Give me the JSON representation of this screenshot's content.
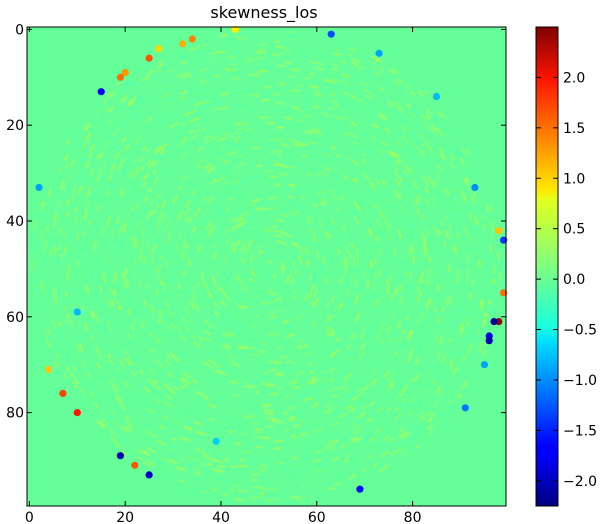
{
  "chart_data": {
    "type": "heatmap",
    "title": "skewness_los",
    "xlabel": "",
    "ylabel": "",
    "x_range": [
      0,
      99
    ],
    "y_range": [
      0,
      99
    ],
    "y_inverted": true,
    "x_ticks": [
      "0",
      "20",
      "40",
      "60",
      "80"
    ],
    "x_tick_values": [
      0,
      20,
      40,
      60,
      80
    ],
    "y_ticks": [
      "0",
      "20",
      "40",
      "60",
      "80"
    ],
    "y_tick_values": [
      0,
      20,
      40,
      60,
      80
    ],
    "colormap": "jet",
    "colorbar": {
      "range": [
        -2.25,
        2.5
      ],
      "ticks": [
        "−2.0",
        "−1.5",
        "−1.0",
        "−0.5",
        "0.0",
        "0.5",
        "1.0",
        "1.5",
        "2.0"
      ],
      "tick_values": [
        -2.0,
        -1.5,
        -1.0,
        -0.5,
        0.0,
        0.5,
        1.0,
        1.5,
        2.0
      ]
    },
    "background_value": 0.0,
    "disk": {
      "center": [
        49.5,
        49.5
      ],
      "radius": 49.5
    },
    "highlights": [
      {
        "x": 15,
        "y": 13,
        "value": -1.7
      },
      {
        "x": 19,
        "y": 10,
        "value": 1.4
      },
      {
        "x": 20,
        "y": 9,
        "value": 1.2
      },
      {
        "x": 25,
        "y": 6,
        "value": 1.5
      },
      {
        "x": 27,
        "y": 4,
        "value": 0.9
      },
      {
        "x": 32,
        "y": 3,
        "value": 1.1
      },
      {
        "x": 34,
        "y": 2,
        "value": 1.3
      },
      {
        "x": 43,
        "y": 0,
        "value": 0.8
      },
      {
        "x": 63,
        "y": 1,
        "value": -1.3
      },
      {
        "x": 73,
        "y": 5,
        "value": -0.9
      },
      {
        "x": 85,
        "y": 14,
        "value": -0.8
      },
      {
        "x": 93,
        "y": 33,
        "value": -1.0
      },
      {
        "x": 98,
        "y": 42,
        "value": 1.0
      },
      {
        "x": 99,
        "y": 44,
        "value": -1.4
      },
      {
        "x": 99,
        "y": 55,
        "value": 1.4
      },
      {
        "x": 98,
        "y": 61,
        "value": 2.4
      },
      {
        "x": 97,
        "y": 61,
        "value": -2.1
      },
      {
        "x": 96,
        "y": 64,
        "value": -1.8
      },
      {
        "x": 96,
        "y": 65,
        "value": -2.0
      },
      {
        "x": 95,
        "y": 70,
        "value": -0.9
      },
      {
        "x": 91,
        "y": 79,
        "value": -1.1
      },
      {
        "x": 69,
        "y": 96,
        "value": -1.6
      },
      {
        "x": 25,
        "y": 93,
        "value": -1.9
      },
      {
        "x": 22,
        "y": 91,
        "value": 1.5
      },
      {
        "x": 19,
        "y": 89,
        "value": -2.0
      },
      {
        "x": 10,
        "y": 80,
        "value": 1.8
      },
      {
        "x": 7,
        "y": 76,
        "value": 1.6
      },
      {
        "x": 4,
        "y": 71,
        "value": 1.0
      },
      {
        "x": 10,
        "y": 59,
        "value": -0.8
      },
      {
        "x": 2,
        "y": 33,
        "value": -0.9
      },
      {
        "x": 39,
        "y": 86,
        "value": -0.7
      }
    ]
  }
}
